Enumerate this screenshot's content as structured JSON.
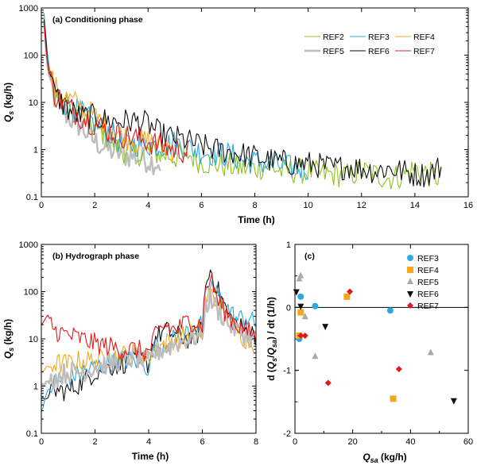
{
  "chart_data": [
    {
      "panel": "a",
      "type": "line",
      "title": "(a) Conditioning phase",
      "xlabel": "Time (h)",
      "ylabel": "Qs (kg/h)",
      "yscale": "log",
      "xlim": [
        0,
        16
      ],
      "ylim": [
        0.1,
        1000
      ],
      "xticks": [
        "0",
        "2",
        "4",
        "6",
        "8",
        "10",
        "12",
        "14",
        "16"
      ],
      "yticks": [
        "0.1",
        "1",
        "10",
        "100",
        "1000"
      ],
      "legend_position": "top-right",
      "series": [
        {
          "name": "REF2",
          "color": "#8dc21f",
          "width": 1.1,
          "x": [
            0.1,
            0.25,
            0.5,
            1,
            1.5,
            2,
            2.5,
            3,
            3.5,
            4,
            4.5,
            5,
            5.5,
            6,
            6.5,
            7,
            7.5,
            8,
            8.5,
            9,
            9.5,
            10,
            10.5,
            11,
            11.5,
            12,
            12.5,
            13,
            13.5,
            14,
            14.5,
            15
          ],
          "values": [
            700,
            60,
            15,
            8,
            5,
            3,
            1.8,
            1,
            0.8,
            0.9,
            0.8,
            0.7,
            0.8,
            0.55,
            0.5,
            0.45,
            0.4,
            0.4,
            0.45,
            0.35,
            0.35,
            0.35,
            0.3,
            0.3,
            0.28,
            0.35,
            0.3,
            0.25,
            0.28,
            0.4,
            0.3,
            0.25
          ]
        },
        {
          "name": "REF3",
          "color": "#2aa9e0",
          "width": 1.1,
          "x": [
            0.1,
            0.25,
            0.5,
            1,
            1.5,
            2,
            2.5,
            3,
            3.5,
            4,
            4.5,
            5,
            5.5,
            6,
            6.5,
            7,
            7.5,
            8,
            8.5,
            9,
            9.5,
            10
          ],
          "values": [
            800,
            70,
            18,
            8,
            6,
            3.5,
            2.5,
            1.4,
            1.3,
            1.3,
            1.2,
            1.4,
            1.1,
            0.9,
            0.8,
            0.8,
            0.6,
            0.55,
            0.5,
            0.45,
            0.4,
            0.4
          ]
        },
        {
          "name": "REF4",
          "color": "#f5a81c",
          "width": 1.1,
          "x": [
            0.1,
            0.25,
            0.5,
            1,
            1.5,
            2,
            2.5,
            3,
            3.5,
            4,
            4.5,
            5
          ],
          "values": [
            600,
            60,
            20,
            12,
            8,
            5,
            3,
            2,
            1.5,
            1.5,
            1.2,
            1.0
          ]
        },
        {
          "name": "REF5",
          "color": "#bdbdbd",
          "width": 2.4,
          "x": [
            0.1,
            0.25,
            0.5,
            1,
            1.5,
            2,
            2.5,
            3,
            3.5,
            4,
            4.5
          ],
          "values": [
            500,
            40,
            12,
            5,
            3,
            1.5,
            1.0,
            0.8,
            0.7,
            0.6,
            0.5
          ]
        },
        {
          "name": "REF6",
          "color": "#111111",
          "width": 1.1,
          "x": [
            0.1,
            0.25,
            0.5,
            1,
            1.5,
            2,
            2.5,
            3,
            3.5,
            4,
            4.5,
            5,
            5.5,
            6,
            6.5,
            7,
            7.5,
            8,
            8.5,
            9,
            9.5,
            10,
            10.5,
            11,
            11.5,
            12,
            12.5,
            13,
            13.5,
            14,
            14.5,
            15
          ],
          "values": [
            600,
            60,
            15,
            7,
            5,
            5,
            4,
            4,
            4,
            3.5,
            2,
            1.8,
            1.5,
            1.2,
            1.0,
            0.9,
            0.8,
            0.7,
            0.6,
            0.55,
            0.5,
            0.5,
            0.45,
            0.4,
            0.45,
            0.4,
            0.35,
            0.4,
            0.35,
            0.3,
            0.3,
            0.45
          ]
        },
        {
          "name": "REF7",
          "color": "#e31a1c",
          "width": 1.1,
          "x": [
            0.1,
            0.25,
            0.5,
            1,
            1.5,
            2,
            2.5,
            3,
            3.5,
            4,
            4.5,
            5,
            5.5
          ],
          "values": [
            500,
            50,
            15,
            8,
            5,
            3.5,
            2.5,
            2,
            1.8,
            1.5,
            1.2,
            1.0,
            0.9
          ]
        }
      ]
    },
    {
      "panel": "b",
      "type": "line",
      "title": "(b) Hydrograph phase",
      "xlabel": "Time (h)",
      "ylabel": "Qs (kg/h)",
      "yscale": "log",
      "xlim": [
        0,
        8
      ],
      "ylim": [
        0.1,
        1000
      ],
      "xticks": [
        "0",
        "2",
        "4",
        "6",
        "8"
      ],
      "yticks": [
        "0.1",
        "1",
        "10",
        "100",
        "1000"
      ],
      "series": [
        {
          "name": "REF3",
          "color": "#2aa9e0",
          "width": 1.1,
          "x": [
            0,
            0.25,
            0.5,
            1,
            1.5,
            2,
            2.5,
            3,
            3.5,
            4,
            4.2,
            4.6,
            5,
            5.5,
            6,
            6.1,
            6.3,
            6.6,
            7,
            7.3,
            7.6,
            8
          ],
          "values": [
            0.3,
            0.8,
            1.2,
            1.5,
            2,
            2.5,
            3,
            3.5,
            3.5,
            2.5,
            6,
            8,
            10,
            15,
            20,
            60,
            150,
            80,
            40,
            25,
            30,
            20
          ]
        },
        {
          "name": "REF4",
          "color": "#f5a81c",
          "width": 1.1,
          "x": [
            0,
            0.25,
            0.5,
            1,
            1.5,
            2,
            2.5,
            3,
            3.5,
            4,
            4.2,
            4.6,
            5,
            5.5,
            6,
            6.1,
            6.3,
            6.6,
            7,
            7.3,
            7.6,
            8
          ],
          "values": [
            2,
            2.5,
            3,
            3,
            3.5,
            3.5,
            4,
            4.5,
            5,
            4,
            6,
            8,
            10,
            12,
            15,
            60,
            100,
            50,
            25,
            15,
            10,
            8
          ]
        },
        {
          "name": "REF5",
          "color": "#bdbdbd",
          "width": 2.4,
          "x": [
            0,
            0.25,
            0.5,
            1,
            1.5,
            2,
            2.5,
            3,
            3.5,
            4,
            4.2,
            4.6,
            5,
            5.5,
            6,
            6.1,
            6.3,
            6.6,
            7,
            7.3,
            7.6,
            8
          ],
          "values": [
            1,
            1.2,
            1.5,
            2,
            2,
            2.5,
            3,
            3.5,
            4,
            3,
            5,
            6,
            8,
            10,
            12,
            50,
            70,
            40,
            20,
            15,
            12,
            10
          ]
        },
        {
          "name": "REF6",
          "color": "#111111",
          "width": 1.1,
          "x": [
            0,
            0.25,
            0.5,
            1,
            1.5,
            2,
            2.5,
            3,
            3.5,
            4,
            4.2,
            4.6,
            5,
            5.5,
            6,
            6.1,
            6.3,
            6.6,
            7,
            7.3,
            7.6,
            8
          ],
          "values": [
            0.5,
            0.6,
            0.8,
            0.8,
            1.2,
            2,
            2.5,
            3,
            3.5,
            3,
            10,
            15,
            12,
            10,
            15,
            100,
            300,
            100,
            30,
            20,
            15,
            12
          ]
        },
        {
          "name": "REF7",
          "color": "#e31a1c",
          "width": 1.1,
          "x": [
            0,
            0.25,
            0.5,
            1,
            1.5,
            2,
            2.5,
            3,
            3.5,
            4,
            4.2,
            4.6,
            5,
            5.5,
            6,
            6.1,
            6.3,
            6.6,
            7,
            7.3,
            7.6,
            8
          ],
          "values": [
            20,
            30,
            15,
            12,
            10,
            8,
            7,
            6,
            6,
            5,
            10,
            20,
            15,
            25,
            20,
            100,
            200,
            60,
            30,
            20,
            15,
            12
          ]
        }
      ]
    },
    {
      "panel": "c",
      "type": "scatter",
      "title": "(c)",
      "xlabel": "Qsa (kg/h)",
      "ylabel": "d (Qs/Qsa) / dt (1/h)",
      "xlim": [
        0,
        60
      ],
      "ylim": [
        -2,
        1
      ],
      "xticks": [
        "0",
        "20",
        "40",
        "60"
      ],
      "yticks": [
        "-2",
        "-1",
        "0",
        "1"
      ],
      "zero_line": true,
      "legend_position": "top-right",
      "series": [
        {
          "name": "REF3",
          "color": "#2aa9e0",
          "marker": "circle",
          "x": [
            1.5,
            2,
            7,
            33
          ],
          "values": [
            -0.5,
            0.17,
            0.02,
            -0.05
          ]
        },
        {
          "name": "REF4",
          "color": "#f5a81c",
          "marker": "square",
          "x": [
            1.5,
            2,
            18,
            34
          ],
          "values": [
            -0.45,
            -0.08,
            0.17,
            -1.45
          ]
        },
        {
          "name": "REF5",
          "color": "#a9a9a9",
          "marker": "triangle-up",
          "x": [
            1.5,
            2,
            3.5,
            7,
            47
          ],
          "values": [
            0.45,
            0.5,
            -0.15,
            -0.78,
            -0.72
          ]
        },
        {
          "name": "REF6",
          "color": "#111111",
          "marker": "triangle-down",
          "x": [
            0.5,
            2,
            10.5,
            55
          ],
          "values": [
            0.25,
            0.02,
            -0.3,
            -1.48
          ]
        },
        {
          "name": "REF7",
          "color": "#e31a1c",
          "marker": "diamond",
          "x": [
            2,
            3.5,
            11.5,
            19,
            36
          ],
          "values": [
            -0.45,
            -0.45,
            -1.2,
            0.25,
            -0.98
          ]
        }
      ]
    }
  ]
}
